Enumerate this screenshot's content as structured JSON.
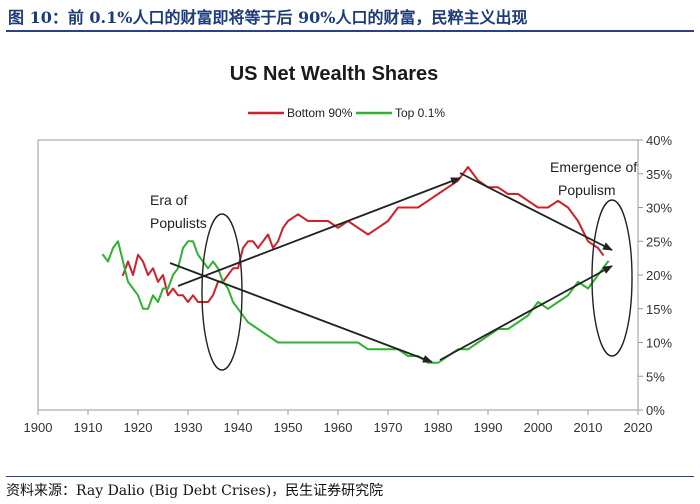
{
  "figure": {
    "title": "图 10：前 0.1%人口的财富即将等于后 90%人口的财富，民粹主义出现",
    "source": "资料来源：Ray Dalio (Big Debt Crises)，民生证券研究院"
  },
  "colors": {
    "bottom": "#d0202a",
    "top": "#2fb22f",
    "axis": "#999999",
    "arrow": "#222222"
  },
  "chart_data": {
    "type": "line",
    "title": "US Net Wealth Shares",
    "xlabel": "",
    "ylabel": "",
    "xlim": [
      1900,
      2020
    ],
    "ylim": [
      0,
      40
    ],
    "x_ticks": [
      "1900",
      "1910",
      "1920",
      "1930",
      "1940",
      "1950",
      "1960",
      "1970",
      "1980",
      "1990",
      "2000",
      "2010",
      "2020"
    ],
    "y_ticks": [
      "0%",
      "5%",
      "10%",
      "15%",
      "20%",
      "25%",
      "30%",
      "35%",
      "40%"
    ],
    "legend_position": "top-center",
    "grid": false,
    "series": [
      {
        "name": "Bottom 90%",
        "color": "#d0202a",
        "x": [
          1917,
          1918,
          1919,
          1920,
          1921,
          1922,
          1923,
          1924,
          1925,
          1926,
          1927,
          1928,
          1929,
          1930,
          1931,
          1932,
          1933,
          1934,
          1935,
          1936,
          1937,
          1938,
          1939,
          1940,
          1941,
          1942,
          1943,
          1944,
          1945,
          1946,
          1947,
          1948,
          1949,
          1950,
          1952,
          1954,
          1956,
          1958,
          1960,
          1962,
          1964,
          1966,
          1968,
          1970,
          1972,
          1974,
          1976,
          1978,
          1980,
          1982,
          1984,
          1985,
          1986,
          1988,
          1990,
          1992,
          1994,
          1996,
          1998,
          2000,
          2002,
          2004,
          2006,
          2008,
          2010,
          2012,
          2013
        ],
        "y": [
          20,
          22,
          20,
          23,
          22,
          20,
          21,
          19,
          20,
          17,
          18,
          17,
          17,
          16,
          17,
          16,
          16,
          16,
          17,
          19,
          19,
          20,
          21,
          21,
          24,
          25,
          25,
          24,
          25,
          26,
          24,
          25,
          27,
          28,
          29,
          28,
          28,
          28,
          27,
          28,
          27,
          26,
          27,
          28,
          30,
          30,
          30,
          31,
          32,
          33,
          34,
          35,
          36,
          34,
          33,
          33,
          32,
          32,
          31,
          30,
          30,
          31,
          30,
          28,
          25,
          24,
          23
        ]
      },
      {
        "name": "Top 0.1%",
        "color": "#2fb22f",
        "x": [
          1913,
          1914,
          1915,
          1916,
          1917,
          1918,
          1919,
          1920,
          1921,
          1922,
          1923,
          1924,
          1925,
          1926,
          1927,
          1928,
          1929,
          1930,
          1931,
          1932,
          1933,
          1934,
          1935,
          1936,
          1937,
          1938,
          1939,
          1940,
          1942,
          1944,
          1946,
          1948,
          1950,
          1952,
          1954,
          1956,
          1958,
          1960,
          1962,
          1964,
          1966,
          1968,
          1970,
          1972,
          1974,
          1976,
          1978,
          1980,
          1982,
          1984,
          1986,
          1988,
          1990,
          1992,
          1994,
          1996,
          1998,
          2000,
          2002,
          2004,
          2006,
          2008,
          2010,
          2012,
          2013,
          2014
        ],
        "y": [
          23,
          22,
          24,
          25,
          22,
          19,
          18,
          17,
          15,
          15,
          17,
          16,
          18,
          18,
          20,
          21,
          24,
          25,
          25,
          23,
          22,
          21,
          22,
          21,
          19,
          18,
          16,
          15,
          13,
          12,
          11,
          10,
          10,
          10,
          10,
          10,
          10,
          10,
          10,
          10,
          9,
          9,
          9,
          9,
          8,
          8,
          7,
          7,
          8,
          9,
          9,
          10,
          11,
          12,
          12,
          13,
          14,
          16,
          15,
          16,
          17,
          19,
          18,
          20,
          21,
          22
        ]
      }
    ],
    "annotations": [
      {
        "lines": [
          "Era of",
          "Populists"
        ],
        "x": 1932,
        "y": 31
      },
      {
        "lines": [
          "Emergence of",
          "Populism"
        ],
        "x": 2006,
        "y": 36
      }
    ]
  }
}
